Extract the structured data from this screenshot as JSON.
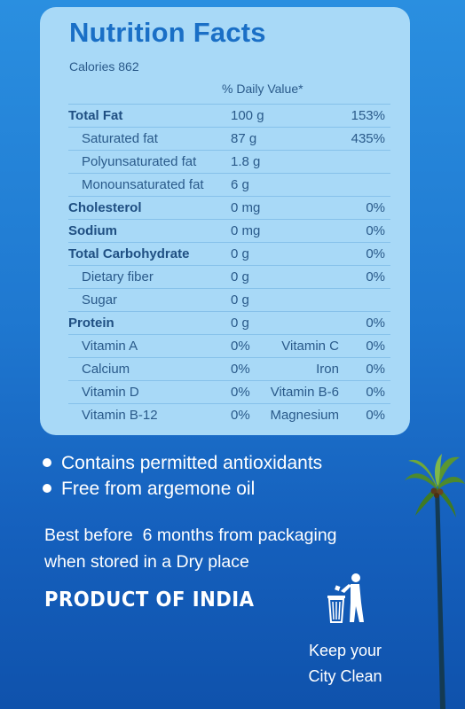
{
  "nutrition": {
    "title": "Nutrition Facts",
    "calories": "Calories 862",
    "daily_value_header": "% Daily Value*",
    "rows": [
      {
        "name": "Total Fat",
        "amount": "100 g",
        "pct": "153%"
      },
      {
        "name": "Saturated fat",
        "amount": "87 g",
        "pct": "435%"
      },
      {
        "name": "Polyunsaturated fat",
        "amount": "1.8 g",
        "pct": ""
      },
      {
        "name": "Monounsaturated fat",
        "amount": "6 g",
        "pct": ""
      },
      {
        "name": "Cholesterol",
        "amount": "0 mg",
        "pct": "0%"
      },
      {
        "name": "Sodium",
        "amount": "0 mg",
        "pct": "0%"
      },
      {
        "name": "Total Carbohydrate",
        "amount": "0 g",
        "pct": "0%"
      },
      {
        "name": "Dietary fiber",
        "amount": "0 g",
        "pct": "0%"
      },
      {
        "name": "Sugar",
        "amount": "0 g",
        "pct": ""
      },
      {
        "name": "Protein",
        "amount": "0 g",
        "pct": "0%"
      }
    ],
    "vitamins": [
      {
        "name1": "Vitamin A",
        "pct1": "0%",
        "name2": "Vitamin C",
        "pct2": "0%"
      },
      {
        "name1": "Calcium",
        "pct1": "0%",
        "name2": "Iron",
        "pct2": "0%"
      },
      {
        "name1": "Vitamin D",
        "pct1": "0%",
        "name2": "Vitamin B-6",
        "pct2": "0%"
      },
      {
        "name1": "Vitamin B-12",
        "pct1": "0%",
        "name2": "Magnesium",
        "pct2": "0%"
      }
    ]
  },
  "claims": [
    "Contains permitted antioxidants",
    "Free from argemone oil"
  ],
  "best_before": {
    "line1": "Best before  6 months from packaging",
    "line2": "when stored in a Dry place"
  },
  "origin": "PRODUCT OF INDIA",
  "keep_clean": {
    "line1": "Keep your",
    "line2": "City Clean"
  },
  "icons": {
    "bin": "person-disposing-litter-icon",
    "tree": "palm-tree-icon"
  },
  "colors": {
    "background": "#1f78d0",
    "panel": "#a8d9f7",
    "title": "#1a6fc6",
    "text": "#ffffff"
  }
}
